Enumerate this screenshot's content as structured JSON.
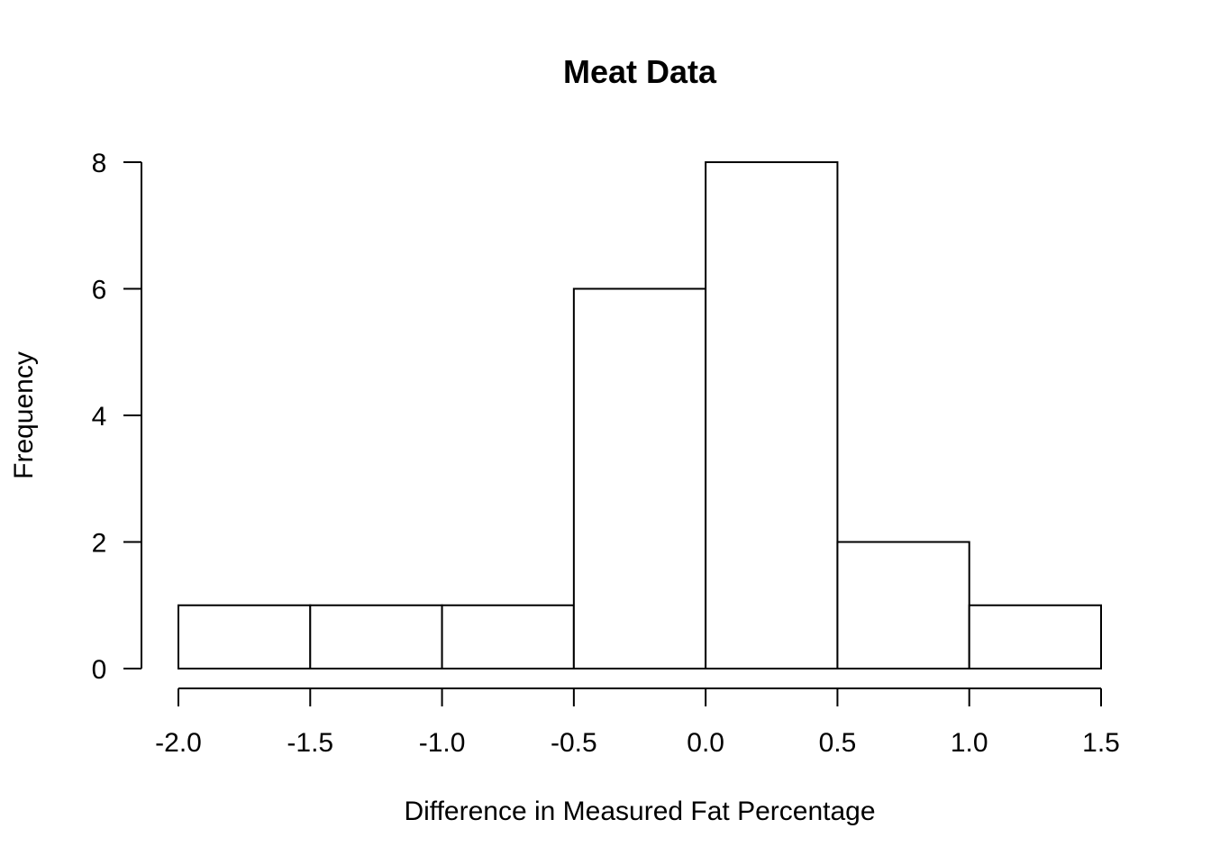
{
  "chart_data": {
    "type": "bar",
    "subtype": "histogram",
    "title": "Meat Data",
    "xlabel": "Difference in Measured Fat Percentage",
    "ylabel": "Frequency",
    "bins": [
      {
        "start": -2.0,
        "end": -1.5,
        "count": 1
      },
      {
        "start": -1.5,
        "end": -1.0,
        "count": 1
      },
      {
        "start": -1.0,
        "end": -0.5,
        "count": 1
      },
      {
        "start": -0.5,
        "end": 0.0,
        "count": 6
      },
      {
        "start": 0.0,
        "end": 0.5,
        "count": 8
      },
      {
        "start": 0.5,
        "end": 1.0,
        "count": 2
      },
      {
        "start": 1.0,
        "end": 1.5,
        "count": 1
      }
    ],
    "xlim": [
      -2.0,
      1.5
    ],
    "ylim": [
      0,
      8
    ],
    "x_ticks": [
      -2.0,
      -1.5,
      -1.0,
      -0.5,
      0.0,
      0.5,
      1.0,
      1.5
    ],
    "x_tick_labels": [
      "-2.0",
      "-1.5",
      "-1.0",
      "-0.5",
      "0.0",
      "0.5",
      "1.0",
      "1.5"
    ],
    "y_ticks": [
      0,
      2,
      4,
      6,
      8
    ],
    "y_tick_labels": [
      "0",
      "2",
      "4",
      "6",
      "8"
    ],
    "bar_fill": "#ffffff",
    "bar_stroke": "#000000",
    "grid": false,
    "legend": "none"
  }
}
